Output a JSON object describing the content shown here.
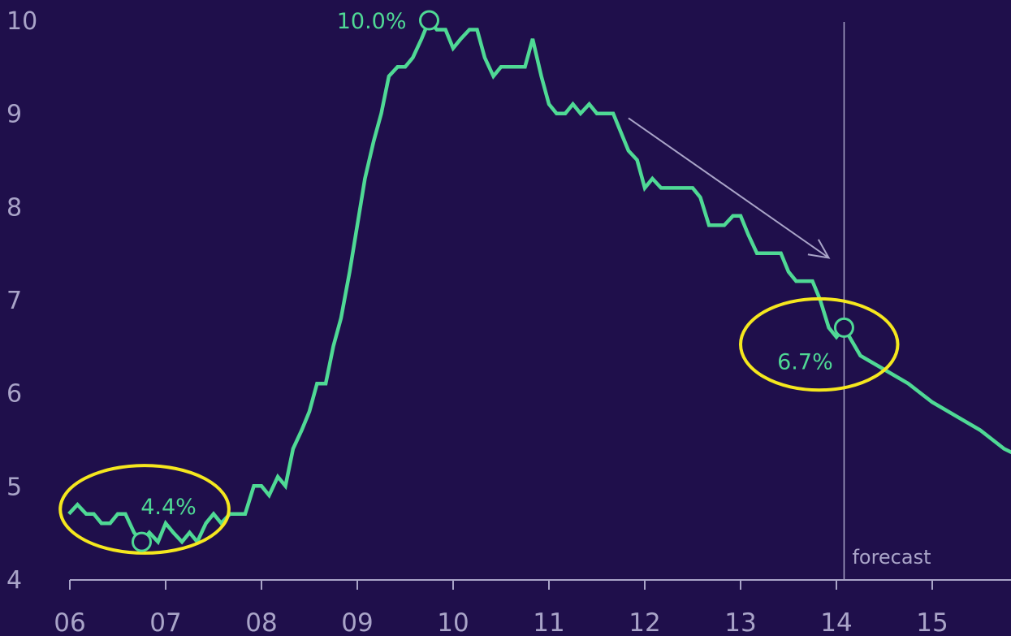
{
  "colors": {
    "background": "#1f0f4b",
    "axis_text": "#a9a4c8",
    "line": "#4fd995",
    "highlight": "#f5e71e",
    "forecast_line": "#a9a4c8",
    "trend_arrow": "#a9a4c8"
  },
  "chart_data": {
    "type": "line",
    "title": "",
    "xlabel": "",
    "ylabel": "",
    "ylim": [
      4,
      10
    ],
    "yticks": [
      "10",
      "9",
      "8",
      "7",
      "6",
      "5",
      "4"
    ],
    "xticks": [
      {
        "label": "06",
        "x": 2006
      },
      {
        "label": "07",
        "x": 2007
      },
      {
        "label": "08",
        "x": 2008
      },
      {
        "label": "09",
        "x": 2009
      },
      {
        "label": "10",
        "x": 2010
      },
      {
        "label": "11",
        "x": 2011
      },
      {
        "label": "12",
        "x": 2012
      },
      {
        "label": "13",
        "x": 2013
      },
      {
        "label": "14",
        "x": 2014
      },
      {
        "label": "15",
        "x": 2015
      }
    ],
    "grid": false,
    "series": [
      {
        "values": [
          [
            2005.99,
            4.7
          ],
          [
            2006.08,
            4.8
          ],
          [
            2006.17,
            4.7
          ],
          [
            2006.25,
            4.7
          ],
          [
            2006.33,
            4.6
          ],
          [
            2006.42,
            4.6
          ],
          [
            2006.5,
            4.7
          ],
          [
            2006.58,
            4.7
          ],
          [
            2006.67,
            4.5
          ],
          [
            2006.75,
            4.4
          ],
          [
            2006.83,
            4.5
          ],
          [
            2006.92,
            4.4
          ],
          [
            2007.0,
            4.6
          ],
          [
            2007.08,
            4.5
          ],
          [
            2007.17,
            4.4
          ],
          [
            2007.25,
            4.5
          ],
          [
            2007.33,
            4.4
          ],
          [
            2007.42,
            4.6
          ],
          [
            2007.5,
            4.7
          ],
          [
            2007.58,
            4.6
          ],
          [
            2007.67,
            4.7
          ],
          [
            2007.75,
            4.7
          ],
          [
            2007.83,
            4.7
          ],
          [
            2007.92,
            5.0
          ],
          [
            2008.0,
            5.0
          ],
          [
            2008.08,
            4.9
          ],
          [
            2008.17,
            5.1
          ],
          [
            2008.25,
            5.0
          ],
          [
            2008.33,
            5.4
          ],
          [
            2008.42,
            5.6
          ],
          [
            2008.5,
            5.8
          ],
          [
            2008.58,
            6.1
          ],
          [
            2008.67,
            6.1
          ],
          [
            2008.75,
            6.5
          ],
          [
            2008.83,
            6.8
          ],
          [
            2008.92,
            7.3
          ],
          [
            2009.0,
            7.8
          ],
          [
            2009.08,
            8.3
          ],
          [
            2009.17,
            8.7
          ],
          [
            2009.25,
            9.0
          ],
          [
            2009.33,
            9.4
          ],
          [
            2009.42,
            9.5
          ],
          [
            2009.5,
            9.5
          ],
          [
            2009.58,
            9.6
          ],
          [
            2009.67,
            9.8
          ],
          [
            2009.75,
            10.0
          ],
          [
            2009.83,
            9.9
          ],
          [
            2009.92,
            9.9
          ],
          [
            2010.0,
            9.7
          ],
          [
            2010.08,
            9.8
          ],
          [
            2010.17,
            9.9
          ],
          [
            2010.25,
            9.9
          ],
          [
            2010.33,
            9.6
          ],
          [
            2010.42,
            9.4
          ],
          [
            2010.5,
            9.5
          ],
          [
            2010.58,
            9.5
          ],
          [
            2010.67,
            9.5
          ],
          [
            2010.75,
            9.5
          ],
          [
            2010.83,
            9.8
          ],
          [
            2010.92,
            9.4
          ],
          [
            2011.0,
            9.1
          ],
          [
            2011.08,
            9.0
          ],
          [
            2011.17,
            9.0
          ],
          [
            2011.25,
            9.1
          ],
          [
            2011.33,
            9.0
          ],
          [
            2011.42,
            9.1
          ],
          [
            2011.5,
            9.0
          ],
          [
            2011.58,
            9.0
          ],
          [
            2011.67,
            9.0
          ],
          [
            2011.75,
            8.8
          ],
          [
            2011.83,
            8.6
          ],
          [
            2011.92,
            8.5
          ],
          [
            2012.0,
            8.2
          ],
          [
            2012.08,
            8.3
          ],
          [
            2012.17,
            8.2
          ],
          [
            2012.25,
            8.2
          ],
          [
            2012.33,
            8.2
          ],
          [
            2012.42,
            8.2
          ],
          [
            2012.5,
            8.2
          ],
          [
            2012.58,
            8.1
          ],
          [
            2012.67,
            7.8
          ],
          [
            2012.75,
            7.8
          ],
          [
            2012.83,
            7.8
          ],
          [
            2012.92,
            7.9
          ],
          [
            2013.0,
            7.9
          ],
          [
            2013.08,
            7.7
          ],
          [
            2013.17,
            7.5
          ],
          [
            2013.25,
            7.5
          ],
          [
            2013.33,
            7.5
          ],
          [
            2013.42,
            7.5
          ],
          [
            2013.5,
            7.3
          ],
          [
            2013.58,
            7.2
          ],
          [
            2013.67,
            7.2
          ],
          [
            2013.75,
            7.2
          ],
          [
            2013.83,
            7.0
          ],
          [
            2013.92,
            6.7
          ],
          [
            2014.0,
            6.6
          ],
          [
            2014.08,
            6.7
          ],
          [
            2014.25,
            6.4
          ],
          [
            2014.5,
            6.25
          ],
          [
            2014.75,
            6.1
          ],
          [
            2014.9,
            5.98
          ],
          [
            2015.0,
            5.9
          ],
          [
            2015.25,
            5.75
          ],
          [
            2015.5,
            5.6
          ],
          [
            2015.75,
            5.4
          ],
          [
            2015.85,
            5.35
          ]
        ]
      }
    ],
    "annotations": [
      {
        "text": "4.4%",
        "x": 2006.75,
        "y": 4.4
      },
      {
        "text": "10.0%",
        "x": 2009.75,
        "y": 10.0
      },
      {
        "text": "6.7%",
        "x": 2014.08,
        "y": 6.7
      }
    ],
    "forecast": {
      "label": "forecast",
      "x": 2014.08
    },
    "trend_arrow": {
      "from": [
        2011.83,
        8.95
      ],
      "to": [
        2013.92,
        7.45
      ]
    },
    "highlight_ellipses": [
      {
        "cx": 2006.78,
        "cy": 4.75,
        "rx": 0.88,
        "ry": 0.47
      },
      {
        "cx": 2013.82,
        "cy": 6.52,
        "rx": 0.82,
        "ry": 0.49
      }
    ]
  }
}
